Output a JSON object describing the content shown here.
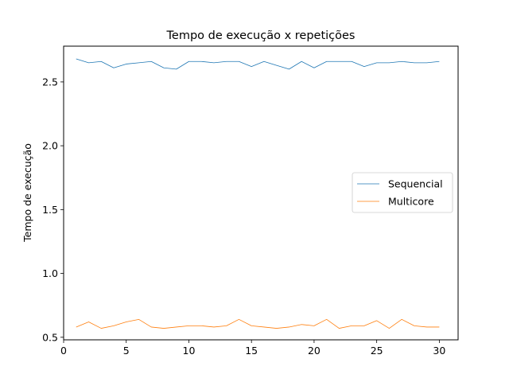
{
  "chart_data": {
    "type": "line",
    "title": "Tempo de execução x repetições",
    "xlabel": "",
    "ylabel": "Tempo de execução",
    "xlim": [
      0.0,
      31.5
    ],
    "ylim": [
      0.48,
      2.78
    ],
    "xticks": [
      0,
      5,
      10,
      15,
      20,
      25,
      30
    ],
    "yticks": [
      0.5,
      1.0,
      1.5,
      2.0,
      2.5
    ],
    "xtick_labels": [
      "0",
      "5",
      "10",
      "15",
      "20",
      "25",
      "30"
    ],
    "ytick_labels": [
      "0.5",
      "1.0",
      "1.5",
      "2.0",
      "2.5"
    ],
    "grid": false,
    "legend_position": "center-right",
    "x": [
      1,
      2,
      3,
      4,
      5,
      6,
      7,
      8,
      9,
      10,
      11,
      12,
      13,
      14,
      15,
      16,
      17,
      18,
      19,
      20,
      21,
      22,
      23,
      24,
      25,
      26,
      27,
      28,
      29,
      30
    ],
    "series": [
      {
        "name": "Sequencial",
        "color": "#1f77b4",
        "values": [
          2.68,
          2.65,
          2.66,
          2.61,
          2.64,
          2.65,
          2.66,
          2.61,
          2.6,
          2.66,
          2.66,
          2.65,
          2.66,
          2.66,
          2.62,
          2.66,
          2.63,
          2.6,
          2.66,
          2.61,
          2.66,
          2.66,
          2.66,
          2.62,
          2.65,
          2.65,
          2.66,
          2.65,
          2.65,
          2.66
        ]
      },
      {
        "name": "Multicore",
        "color": "#ff7f0e",
        "values": [
          0.58,
          0.62,
          0.57,
          0.59,
          0.62,
          0.64,
          0.58,
          0.57,
          0.58,
          0.59,
          0.59,
          0.58,
          0.59,
          0.64,
          0.59,
          0.58,
          0.57,
          0.58,
          0.6,
          0.59,
          0.64,
          0.57,
          0.59,
          0.59,
          0.63,
          0.57,
          0.64,
          0.59,
          0.58,
          0.58
        ]
      }
    ]
  }
}
